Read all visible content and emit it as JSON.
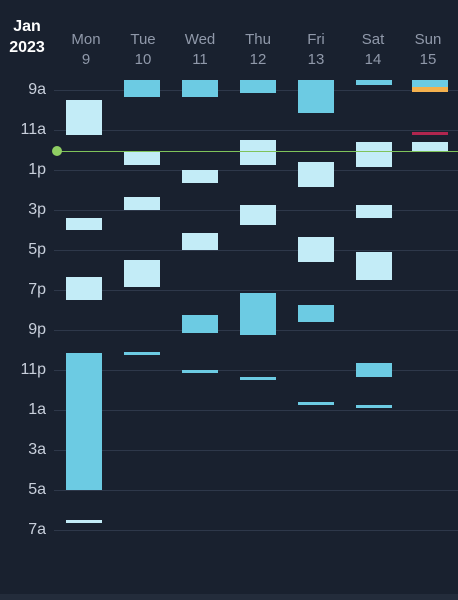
{
  "header": {
    "month": "Jan",
    "year": "2023",
    "days": [
      {
        "name": "Mon",
        "num": "9"
      },
      {
        "name": "Tue",
        "num": "10"
      },
      {
        "name": "Wed",
        "num": "11"
      },
      {
        "name": "Thu",
        "num": "12"
      },
      {
        "name": "Fri",
        "num": "13"
      },
      {
        "name": "Sat",
        "num": "14"
      },
      {
        "name": "Sun",
        "num": "15"
      }
    ]
  },
  "time_labels": [
    "9a",
    "11a",
    "1p",
    "3p",
    "5p",
    "7p",
    "9p",
    "11p",
    "1a",
    "3a",
    "5a",
    "7a"
  ],
  "colors": {
    "background": "#19212f",
    "event_light": "#c3ecf7",
    "event_dark": "#6ccbe3",
    "event_orange": "#f4b14e",
    "event_red": "#b0264f",
    "now_indicator": "#8fce63"
  },
  "events": [
    {
      "day": 0,
      "start": "9:00",
      "end": "10:45",
      "style": "light"
    },
    {
      "day": 0,
      "start": "14:55",
      "end": "15:30",
      "style": "light"
    },
    {
      "day": 0,
      "start": "17:50",
      "end": "19:00",
      "style": "light"
    },
    {
      "day": 0,
      "start": "21:40",
      "end": "4:30",
      "style": "dark"
    },
    {
      "day": 0,
      "start": "6:00",
      "end": "8:30",
      "style": "light"
    },
    {
      "day": 1,
      "start": "8:00",
      "end": "8:50",
      "style": "dark"
    },
    {
      "day": 1,
      "start": "11:35",
      "end": "12:15",
      "style": "light"
    },
    {
      "day": 1,
      "start": "13:50",
      "end": "14:30",
      "style": "light"
    },
    {
      "day": 1,
      "start": "17:00",
      "end": "18:20",
      "style": "light"
    },
    {
      "day": 1,
      "start": "21:35",
      "end": "8:30",
      "style": "dark"
    },
    {
      "day": 2,
      "start": "8:00",
      "end": "8:50",
      "style": "dark"
    },
    {
      "day": 2,
      "start": "12:30",
      "end": "13:10",
      "style": "light"
    },
    {
      "day": 2,
      "start": "15:40",
      "end": "16:30",
      "style": "light"
    },
    {
      "day": 2,
      "start": "19:45",
      "end": "20:40",
      "style": "dark"
    },
    {
      "day": 2,
      "start": "22:30",
      "end": "8:30",
      "style": "dark"
    },
    {
      "day": 3,
      "start": "8:00",
      "end": "8:40",
      "style": "dark"
    },
    {
      "day": 3,
      "start": "11:00",
      "end": "12:15",
      "style": "light"
    },
    {
      "day": 3,
      "start": "14:15",
      "end": "15:15",
      "style": "light"
    },
    {
      "day": 3,
      "start": "18:40",
      "end": "20:45",
      "style": "dark"
    },
    {
      "day": 3,
      "start": "22:50",
      "end": "8:30",
      "style": "dark"
    },
    {
      "day": 4,
      "start": "8:00",
      "end": "9:40",
      "style": "dark"
    },
    {
      "day": 4,
      "start": "12:05",
      "end": "13:20",
      "style": "light"
    },
    {
      "day": 4,
      "start": "15:50",
      "end": "17:05",
      "style": "light"
    },
    {
      "day": 4,
      "start": "19:15",
      "end": "20:05",
      "style": "dark"
    },
    {
      "day": 4,
      "start": "0:05",
      "end": "8:30",
      "style": "dark"
    },
    {
      "day": 5,
      "start": "8:00",
      "end": "8:15",
      "style": "dark"
    },
    {
      "day": 5,
      "start": "11:05",
      "end": "12:20",
      "style": "light"
    },
    {
      "day": 5,
      "start": "14:15",
      "end": "14:55",
      "style": "light"
    },
    {
      "day": 5,
      "start": "16:35",
      "end": "18:00",
      "style": "light"
    },
    {
      "day": 5,
      "start": "22:10",
      "end": "22:50",
      "style": "dark"
    },
    {
      "day": 5,
      "start": "0:15",
      "end": "8:30",
      "style": "dark"
    },
    {
      "day": 6,
      "start": "8:00",
      "end": "8:20",
      "style": "dark"
    },
    {
      "day": 6,
      "start": "8:20",
      "end": "8:35",
      "style": "orange"
    },
    {
      "day": 6,
      "start": "10:35",
      "end": "10:45",
      "style": "red"
    },
    {
      "day": 6,
      "start": "11:05",
      "end": "11:35",
      "style": "light"
    }
  ]
}
